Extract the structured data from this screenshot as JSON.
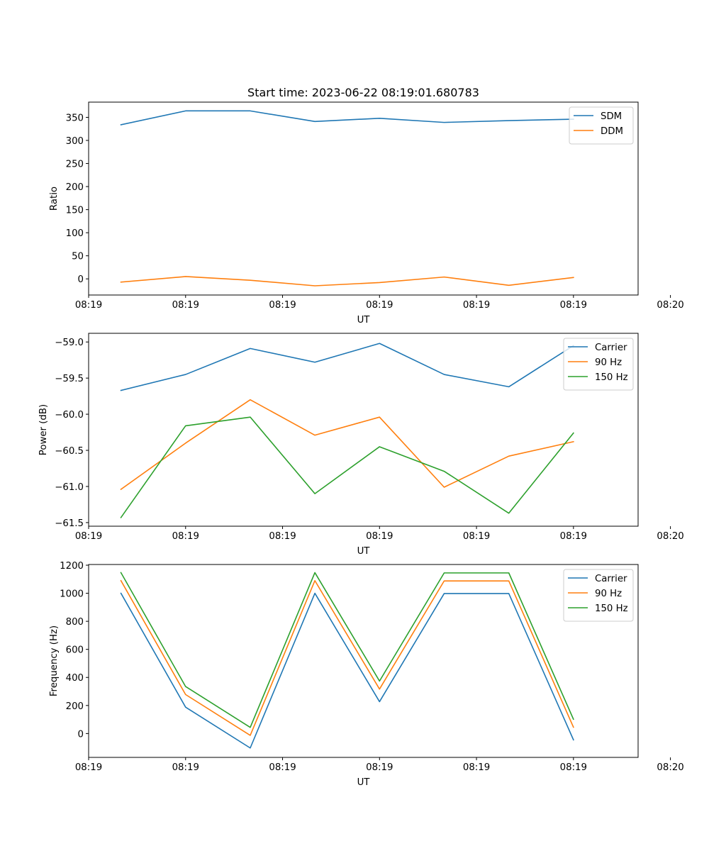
{
  "colors": {
    "series_1": "#1f77b4",
    "series_2": "#ff7f0e",
    "series_3": "#2ca02c",
    "axes": "#000000",
    "legend_border": "#cccccc"
  },
  "chart_data": [
    {
      "type": "line",
      "title": "Start time: 2023-06-22 08:19:01.680783",
      "xlabel": "UT",
      "ylabel": "Ratio",
      "x": [
        "08:19:02",
        "08:19:03",
        "08:19:04",
        "08:19:05",
        "08:19:06",
        "08:19:07",
        "08:19:08",
        "08:19:09"
      ],
      "xlim": [
        "08:19:01.5",
        "08:19:10"
      ],
      "xticks": [
        {
          "t": "08:19:01.5",
          "label": "08:19"
        },
        {
          "t": "08:19:03",
          "label": "08:19"
        },
        {
          "t": "08:19:04.5",
          "label": "08:19"
        },
        {
          "t": "08:19:06",
          "label": "08:19"
        },
        {
          "t": "08:19:07.5",
          "label": "08:19"
        },
        {
          "t": "08:19:09",
          "label": "08:19"
        },
        {
          "t": "08:19:10.5",
          "label": "08:20"
        }
      ],
      "ylim": [
        -35,
        383
      ],
      "yticks": [
        0,
        50,
        100,
        150,
        200,
        250,
        300,
        350
      ],
      "legend_position": "top-right",
      "series": [
        {
          "name": "SDM",
          "values": [
            334,
            364,
            364,
            341,
            348,
            339,
            343,
            346
          ]
        },
        {
          "name": "DDM",
          "values": [
            -7,
            5,
            -3,
            -15,
            -8,
            4,
            -14,
            3
          ]
        }
      ]
    },
    {
      "type": "line",
      "xlabel": "UT",
      "ylabel": "Power (dB)",
      "x": [
        "08:19:02",
        "08:19:03",
        "08:19:04",
        "08:19:05",
        "08:19:06",
        "08:19:07",
        "08:19:08",
        "08:19:09"
      ],
      "xlim": [
        "08:19:01.5",
        "08:19:10"
      ],
      "xticks": [
        {
          "t": "08:19:01.5",
          "label": "08:19"
        },
        {
          "t": "08:19:03",
          "label": "08:19"
        },
        {
          "t": "08:19:04.5",
          "label": "08:19"
        },
        {
          "t": "08:19:06",
          "label": "08:19"
        },
        {
          "t": "08:19:07.5",
          "label": "08:19"
        },
        {
          "t": "08:19:09",
          "label": "08:19"
        },
        {
          "t": "08:19:10.5",
          "label": "08:20"
        }
      ],
      "ylim": [
        -61.55,
        -58.88
      ],
      "yticks": [
        -61.5,
        -61.0,
        -60.5,
        -60.0,
        -59.5,
        -59.0
      ],
      "ytick_labels": [
        "−61.5",
        "−61.0",
        "−60.5",
        "−60.0",
        "−59.5",
        "−59.0"
      ],
      "legend_position": "top-right",
      "series": [
        {
          "name": "Carrier",
          "values": [
            -59.67,
            -59.45,
            -59.09,
            -59.28,
            -59.02,
            -59.45,
            -59.62,
            -59.05
          ]
        },
        {
          "name": "90 Hz",
          "values": [
            -61.04,
            -60.4,
            -59.8,
            -60.29,
            -60.04,
            -61.01,
            -60.58,
            -60.38
          ]
        },
        {
          "name": "150 Hz",
          "values": [
            -61.43,
            -60.16,
            -60.04,
            -61.1,
            -60.45,
            -60.79,
            -61.37,
            -60.26
          ]
        }
      ]
    },
    {
      "type": "line",
      "xlabel": "UT",
      "ylabel": "Frequency (Hz)",
      "x": [
        "08:19:02",
        "08:19:03",
        "08:19:04",
        "08:19:05",
        "08:19:06",
        "08:19:07",
        "08:19:08",
        "08:19:09"
      ],
      "xlim": [
        "08:19:01.5",
        "08:19:10"
      ],
      "xticks": [
        {
          "t": "08:19:01.5",
          "label": "08:19"
        },
        {
          "t": "08:19:03",
          "label": "08:19"
        },
        {
          "t": "08:19:04.5",
          "label": "08:19"
        },
        {
          "t": "08:19:06",
          "label": "08:19"
        },
        {
          "t": "08:19:07.5",
          "label": "08:19"
        },
        {
          "t": "08:19:09",
          "label": "08:19"
        },
        {
          "t": "08:19:10.5",
          "label": "08:20"
        }
      ],
      "ylim": [
        -170,
        1205
      ],
      "yticks": [
        0,
        200,
        400,
        600,
        800,
        1000,
        1200
      ],
      "legend_position": "top-right",
      "series": [
        {
          "name": "Carrier",
          "values": [
            1000,
            188,
            -103,
            1000,
            227,
            998,
            998,
            -45
          ]
        },
        {
          "name": "90 Hz",
          "values": [
            1090,
            278,
            -13,
            1090,
            317,
            1088,
            1088,
            45
          ]
        },
        {
          "name": "150 Hz",
          "values": [
            1147,
            335,
            44,
            1147,
            374,
            1145,
            1145,
            102
          ]
        }
      ]
    }
  ]
}
